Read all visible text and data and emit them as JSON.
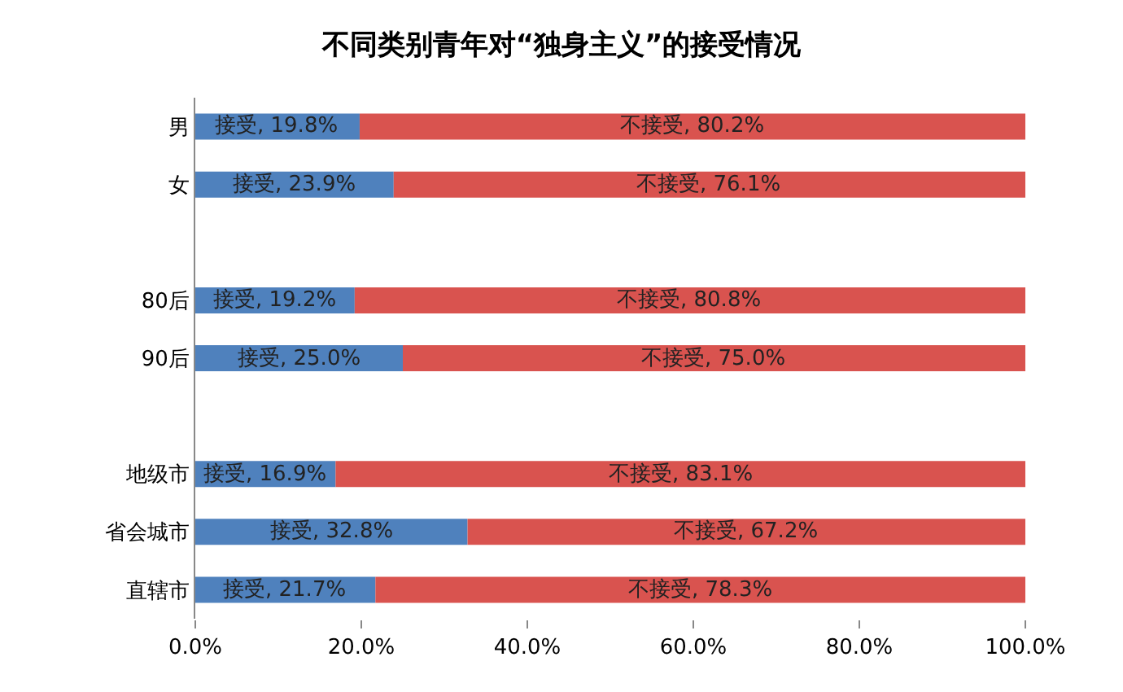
{
  "chart_data": {
    "type": "bar",
    "orientation": "horizontal",
    "stacked": true,
    "title": "不同类别青年对“独身主义”的接受情况",
    "categories": [
      "男",
      "女",
      null,
      "80后",
      "90后",
      null,
      "地级市",
      "省会城市",
      "直辖市"
    ],
    "series": [
      {
        "color": "#4f81bd",
        "values": [
          19.8,
          23.9,
          null,
          19.2,
          25.0,
          null,
          16.9,
          32.8,
          21.7
        ],
        "value_labels": [
          "接受, 19.8%",
          "接受, 23.9%",
          null,
          "接受, 19.2%",
          "接受, 25.0%",
          null,
          "接受, 16.9%",
          "接受, 32.8%",
          "接受, 21.7%"
        ]
      },
      {
        "color": "#d9534f",
        "values": [
          80.2,
          76.1,
          null,
          80.8,
          75.0,
          null,
          83.1,
          67.2,
          78.3
        ],
        "value_labels": [
          "不接受, 80.2%",
          "不接受, 76.1%",
          null,
          "不接受, 80.8%",
          "不接受, 75.0%",
          null,
          "不接受, 83.1%",
          "不接受, 67.2%",
          "不接受, 78.3%"
        ]
      }
    ],
    "xlim": [
      0,
      100
    ],
    "xticks": [
      {
        "value": 0,
        "label": "0.0%"
      },
      {
        "value": 20,
        "label": "20.0%"
      },
      {
        "value": 40,
        "label": "40.0%"
      },
      {
        "value": 60,
        "label": "60.0%"
      },
      {
        "value": 80,
        "label": "80.0%"
      },
      {
        "value": 100,
        "label": "100.0%"
      }
    ],
    "tick_labels": true
  }
}
